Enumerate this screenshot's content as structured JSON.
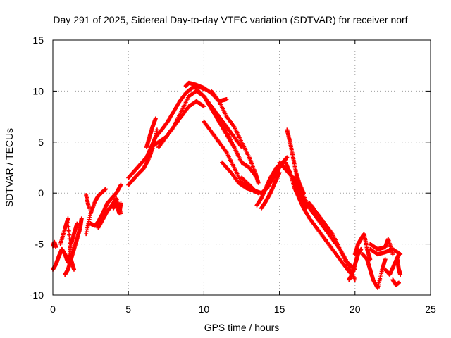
{
  "chart_data": {
    "type": "scatter",
    "title": "Day 291 of 2025, Sidereal Day-to-day VTEC variation (SDTVAR) for receiver norf",
    "xlabel": "GPS time / hours",
    "ylabel": "SDTVAR / TECUs",
    "xlim": [
      0,
      25
    ],
    "ylim": [
      -10,
      15
    ],
    "xticks": [
      0,
      5,
      10,
      15,
      20,
      25
    ],
    "yticks": [
      -10,
      -5,
      0,
      5,
      10,
      15
    ],
    "xtick_labels": [
      "0",
      "5",
      "10",
      "15",
      "20",
      "25"
    ],
    "ytick_labels": [
      "-10",
      "-5",
      "0",
      "5",
      "10",
      "15"
    ],
    "grid": true,
    "marker": "plus",
    "series": [
      {
        "name": "SDTVAR",
        "color": "#ff0000",
        "tracks": [
          {
            "x": [
              0.0,
              0.2,
              0.4,
              0.6,
              0.8,
              1.0,
              1.2,
              1.4,
              1.6
            ],
            "y": [
              -7.5,
              -7.0,
              -6.2,
              -5.5,
              -6.0,
              -6.8,
              -5.0,
              -4.0,
              -3.0
            ]
          },
          {
            "x": [
              0.5,
              0.8,
              1.0,
              1.2,
              1.4
            ],
            "y": [
              -5.0,
              -3.5,
              -2.5,
              -6.5,
              -7.5
            ]
          },
          {
            "x": [
              0.8,
              1.0,
              1.2,
              1.4,
              1.6,
              1.8,
              1.9
            ],
            "y": [
              -8.0,
              -7.5,
              -6.5,
              -5.5,
              -4.5,
              -3.5,
              -2.5
            ]
          },
          {
            "x": [
              0.0,
              0.1,
              0.2
            ],
            "y": [
              -5.2,
              -4.8,
              -5.3
            ]
          },
          {
            "x": [
              2.2,
              2.5,
              2.8,
              3.0,
              3.2,
              3.5
            ],
            "y": [
              -4.0,
              -2.0,
              -0.8,
              -0.3,
              0.0,
              0.4
            ]
          },
          {
            "x": [
              2.2,
              2.4
            ],
            "y": [
              -0.2,
              -1.5
            ]
          },
          {
            "x": [
              2.5,
              2.8,
              3.0,
              3.3,
              3.6,
              3.9,
              4.2,
              4.5
            ],
            "y": [
              -3.0,
              -3.2,
              -2.8,
              -2.0,
              -1.0,
              -0.5,
              0.0,
              0.8
            ]
          },
          {
            "x": [
              3.0,
              3.3,
              3.6,
              3.9,
              4.2,
              4.5
            ],
            "y": [
              -3.4,
              -2.6,
              -1.8,
              -1.2,
              -0.5,
              -2.0
            ]
          },
          {
            "x": [
              4.0,
              4.2,
              4.4,
              4.5
            ],
            "y": [
              -1.5,
              -1.0,
              -2.0,
              -1.0
            ]
          },
          {
            "x": [
              5.0,
              5.3,
              5.6,
              5.9,
              6.2,
              6.5,
              6.8
            ],
            "y": [
              1.5,
              2.0,
              2.5,
              3.0,
              3.5,
              4.5,
              5.5
            ]
          },
          {
            "x": [
              5.0,
              5.3,
              5.6,
              6.0,
              6.3,
              6.6,
              6.9
            ],
            "y": [
              0.8,
              1.3,
              1.8,
              2.4,
              3.2,
              4.4,
              6.2
            ]
          },
          {
            "x": [
              6.2,
              6.4,
              6.6,
              6.8
            ],
            "y": [
              4.5,
              5.5,
              6.5,
              7.3
            ]
          },
          {
            "x": [
              6.5,
              7.0,
              7.5,
              8.0,
              8.5,
              9.0,
              9.5,
              10.0
            ],
            "y": [
              4.5,
              5.0,
              5.5,
              6.5,
              7.5,
              8.5,
              9.0,
              8.5
            ]
          },
          {
            "x": [
              6.8,
              7.2,
              7.6,
              8.0,
              8.4,
              8.8,
              9.2,
              9.6,
              10.0
            ],
            "y": [
              5.5,
              6.2,
              7.0,
              8.0,
              9.0,
              9.8,
              10.3,
              10.5,
              10.2
            ]
          },
          {
            "x": [
              7.0,
              7.5,
              8.0,
              8.5,
              9.0,
              9.5,
              10.0
            ],
            "y": [
              4.5,
              5.5,
              6.5,
              8.0,
              9.5,
              10.0,
              9.5
            ]
          },
          {
            "x": [
              8.8,
              9.0,
              9.5,
              10.0,
              10.5,
              11.0,
              11.5
            ],
            "y": [
              10.5,
              10.8,
              10.6,
              10.3,
              9.8,
              9.0,
              9.2
            ]
          },
          {
            "x": [
              9.5,
              10.0,
              10.5,
              11.0,
              11.5,
              12.0,
              12.5
            ],
            "y": [
              10.2,
              9.5,
              8.5,
              7.5,
              6.5,
              5.5,
              4.5
            ]
          },
          {
            "x": [
              10.0,
              10.4,
              10.8,
              11.2,
              11.6,
              12.0,
              12.5,
              13.0,
              13.5
            ],
            "y": [
              9.5,
              8.5,
              7.5,
              6.5,
              5.5,
              4.5,
              3.0,
              2.5,
              1.5
            ]
          },
          {
            "x": [
              10.5,
              11.0,
              11.5,
              12.0,
              12.5,
              13.0,
              13.4,
              13.6
            ],
            "y": [
              10.0,
              9.0,
              7.5,
              6.5,
              5.0,
              3.5,
              2.0,
              1.0
            ]
          },
          {
            "x": [
              10.0,
              10.5,
              11.0,
              11.5,
              12.0,
              12.5,
              13.0
            ],
            "y": [
              7.0,
              6.0,
              5.0,
              4.0,
              2.5,
              1.0,
              0.5
            ]
          },
          {
            "x": [
              11.0,
              11.5,
              12.0,
              12.5,
              13.0
            ],
            "y": [
              7.5,
              6.0,
              4.5,
              3.0,
              2.5
            ]
          },
          {
            "x": [
              11.2,
              11.8,
              12.3,
              12.8,
              13.2,
              13.6
            ],
            "y": [
              3.0,
              2.0,
              1.0,
              0.5,
              0.3,
              0.0
            ]
          },
          {
            "x": [
              12.5,
              13.0,
              13.4,
              13.8,
              14.2,
              14.6,
              15.0,
              15.4
            ],
            "y": [
              1.5,
              0.8,
              0.2,
              0.0,
              0.5,
              1.5,
              2.5,
              3.3
            ]
          },
          {
            "x": [
              13.5,
              13.8,
              14.1,
              14.4,
              14.8,
              15.2,
              15.5
            ],
            "y": [
              -1.2,
              -0.5,
              0.5,
              1.5,
              2.5,
              3.0,
              3.5
            ]
          },
          {
            "x": [
              13.8,
              14.1,
              14.4,
              14.7,
              15.0
            ],
            "y": [
              -1.5,
              -0.8,
              0.0,
              1.0,
              2.0
            ]
          },
          {
            "x": [
              15.0,
              15.3,
              15.6,
              15.9,
              16.2,
              16.5,
              16.8
            ],
            "y": [
              3.0,
              2.5,
              2.0,
              1.5,
              0.5,
              -0.5,
              -1.5
            ]
          },
          {
            "x": [
              15.5,
              15.7,
              15.9,
              16.1,
              16.3,
              16.6
            ],
            "y": [
              6.2,
              5.0,
              3.5,
              2.0,
              1.0,
              0.0
            ]
          },
          {
            "x": [
              15.4,
              15.7,
              16.0,
              16.3,
              16.6,
              17.0,
              17.5,
              18.0,
              18.5,
              19.0,
              19.5,
              19.8
            ],
            "y": [
              3.0,
              2.0,
              0.5,
              -0.5,
              -1.5,
              -2.5,
              -3.5,
              -4.5,
              -5.5,
              -6.5,
              -7.5,
              -8.0
            ]
          },
          {
            "x": [
              16.0,
              16.5,
              17.0,
              17.5,
              18.0,
              18.5,
              19.0,
              19.5,
              20.0
            ],
            "y": [
              1.5,
              0.0,
              -1.5,
              -2.5,
              -3.5,
              -4.5,
              -5.5,
              -6.8,
              -7.5
            ]
          },
          {
            "x": [
              17.0,
              17.5,
              18.0,
              18.5,
              19.0,
              19.5,
              20.0
            ],
            "y": [
              -1.0,
              -2.0,
              -3.0,
              -4.0,
              -5.5,
              -7.0,
              -8.5
            ]
          },
          {
            "x": [
              19.6,
              19.8,
              20.0,
              20.2,
              20.4
            ],
            "y": [
              -8.5,
              -8.0,
              -7.0,
              -6.0,
              -5.5
            ]
          },
          {
            "x": [
              20.0,
              20.2,
              20.4,
              20.6,
              20.8,
              21.0
            ],
            "y": [
              -6.0,
              -5.0,
              -4.5,
              -4.0,
              -5.5,
              -6.5
            ]
          },
          {
            "x": [
              20.5,
              20.8,
              21.0,
              21.2,
              21.5,
              21.8,
              22.0
            ],
            "y": [
              -6.0,
              -6.5,
              -7.5,
              -8.5,
              -9.3,
              -7.5,
              -6.5
            ]
          },
          {
            "x": [
              21.0,
              21.5,
              22.0,
              22.5,
              23.0
            ],
            "y": [
              -5.5,
              -6.0,
              -5.8,
              -5.5,
              -6.0
            ]
          },
          {
            "x": [
              21.0,
              21.5,
              22.0,
              22.2,
              22.5
            ],
            "y": [
              -5.0,
              -5.5,
              -5.3,
              -4.5,
              -6.0
            ]
          },
          {
            "x": [
              22.0,
              22.3,
              22.6,
              22.9
            ],
            "y": [
              -7.5,
              -8.0,
              -7.0,
              -6.0
            ]
          },
          {
            "x": [
              22.5,
              22.7,
              22.9
            ],
            "y": [
              -8.5,
              -9.0,
              -8.8
            ]
          },
          {
            "x": [
              22.8,
              22.9,
              23.0
            ],
            "y": [
              -6.5,
              -7.5,
              -8.0
            ]
          }
        ]
      }
    ]
  }
}
